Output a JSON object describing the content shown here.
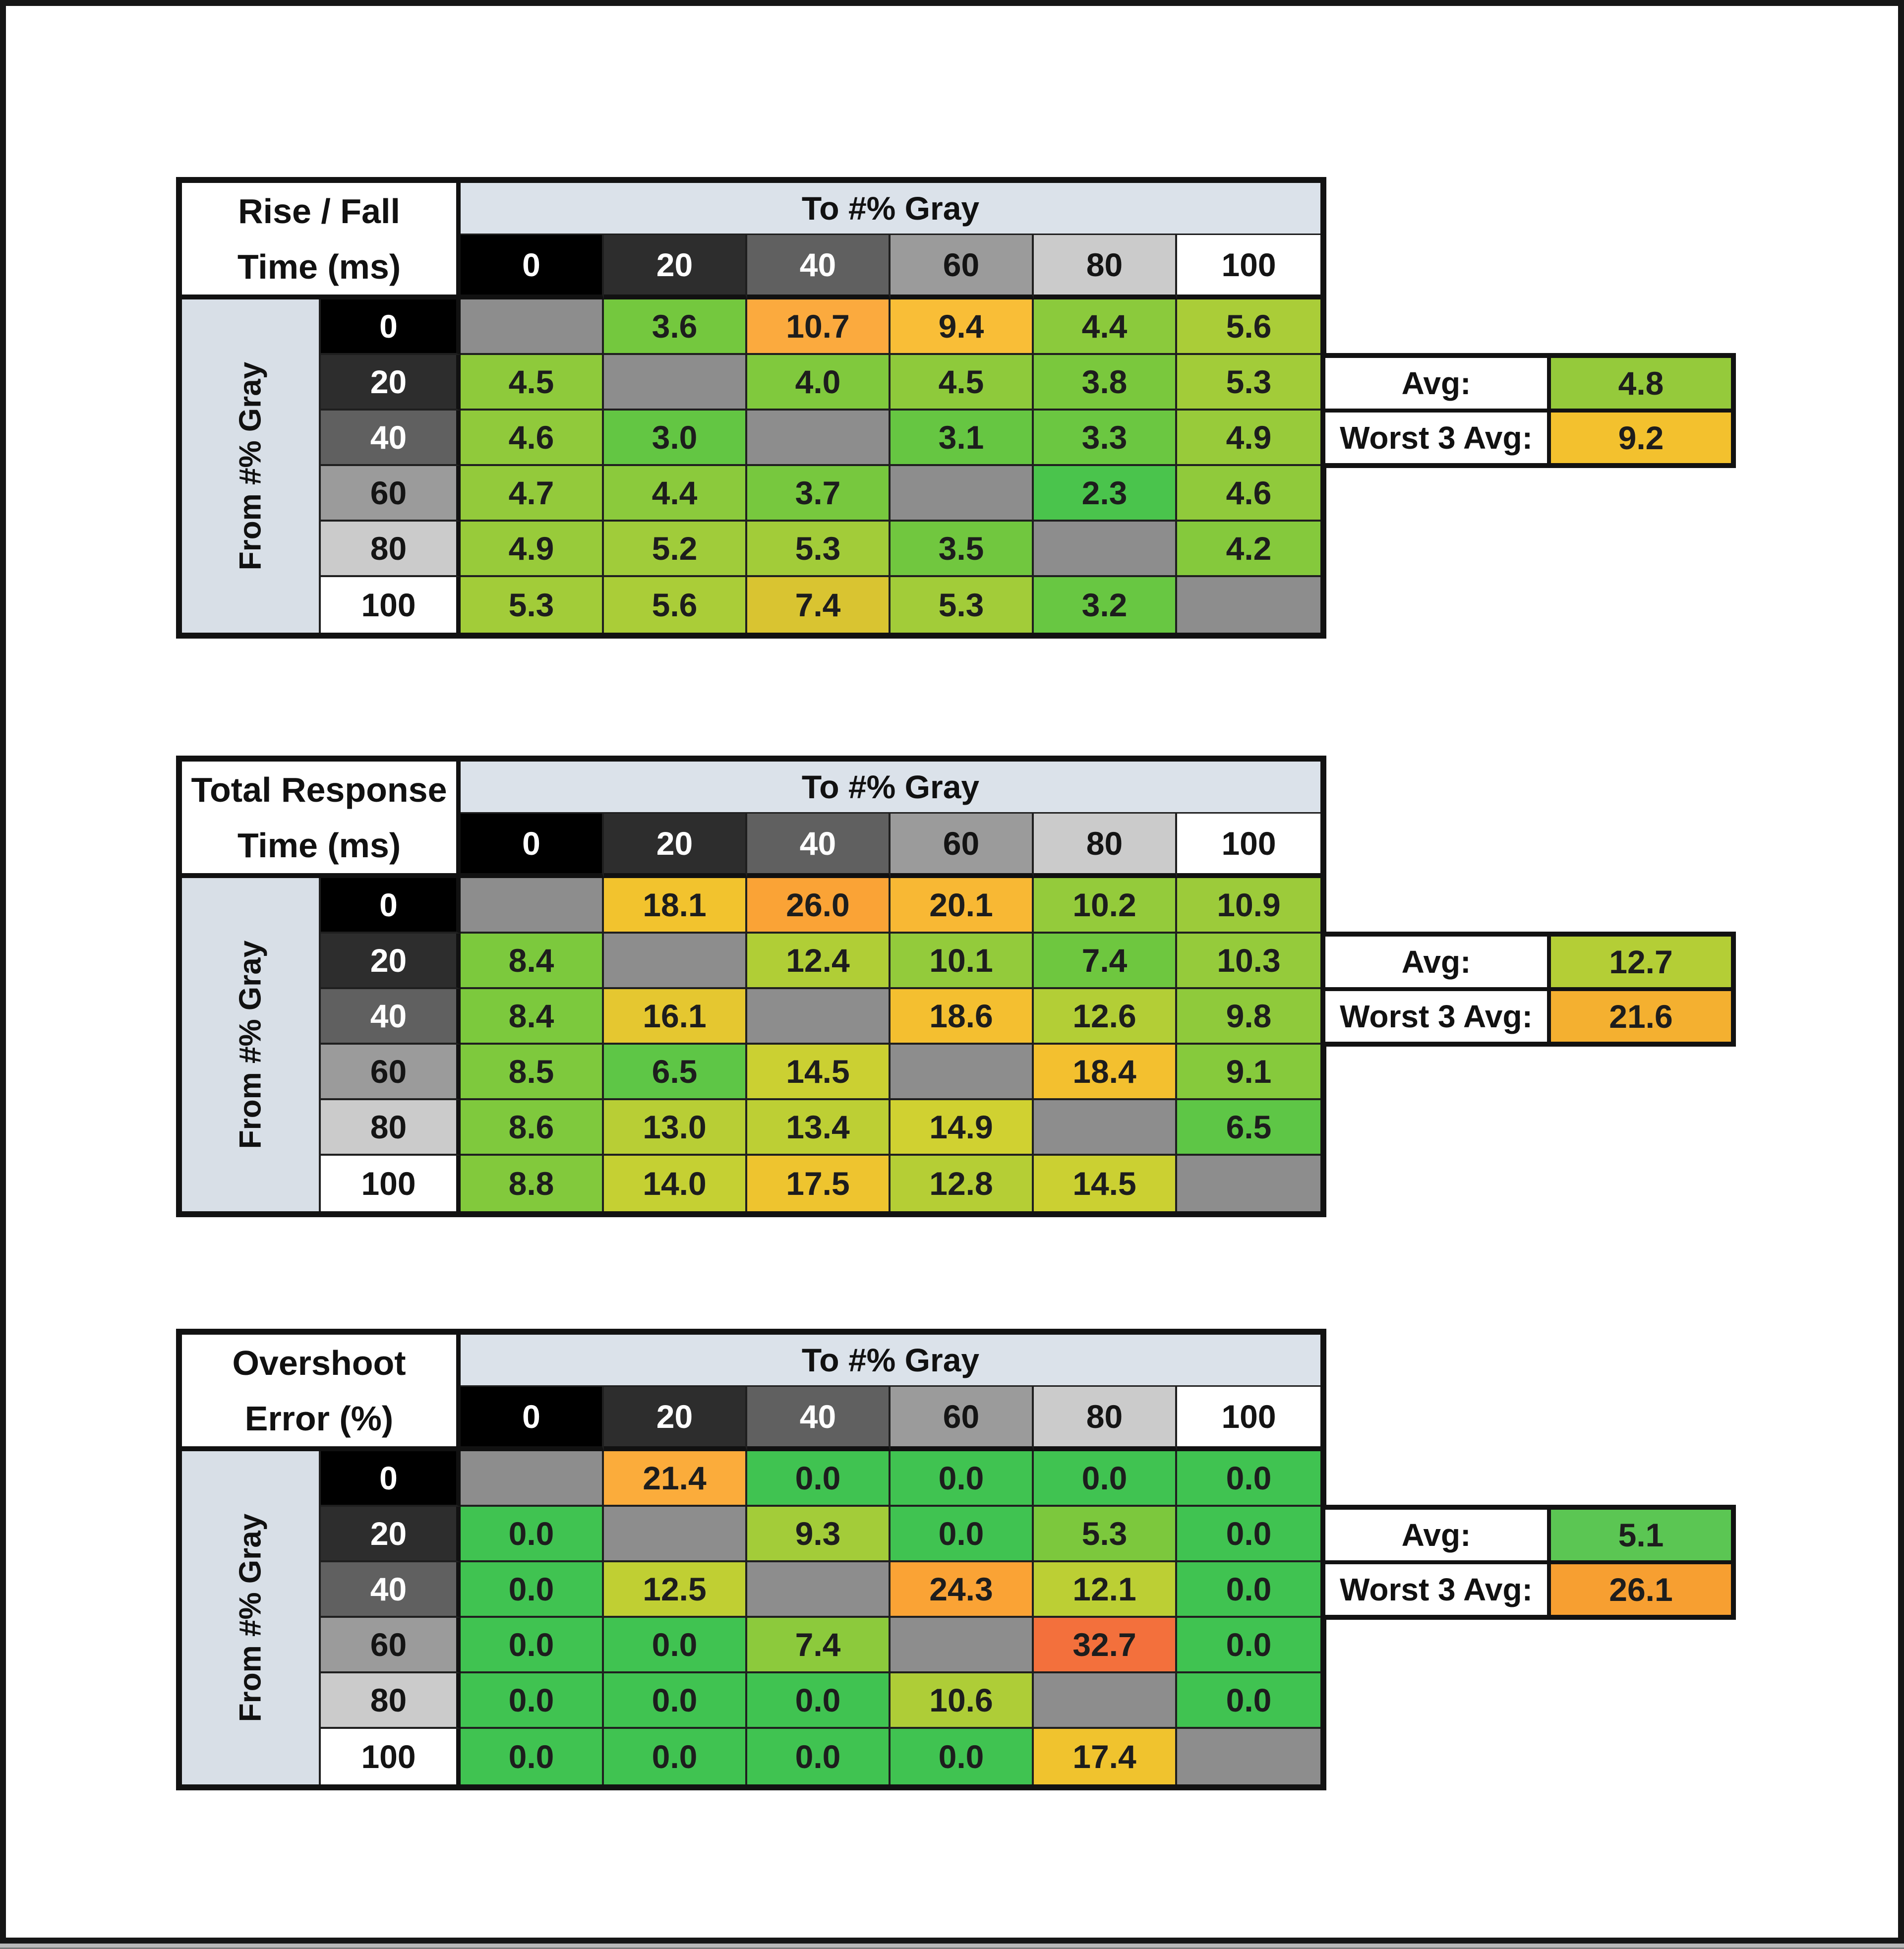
{
  "frame": {
    "background": "#ffffff",
    "border_color": "#161616",
    "bottom_strip_color": "#b9b9b9"
  },
  "shared": {
    "to_axis_label": "To #% Gray",
    "from_axis_label": "From #% Gray",
    "gray_levels": [
      "0",
      "20",
      "40",
      "60",
      "80",
      "100"
    ],
    "header_shades": [
      {
        "bg": "#000000",
        "fg": "#ffffff"
      },
      {
        "bg": "#2d2d2d",
        "fg": "#ffffff"
      },
      {
        "bg": "#606060",
        "fg": "#ffffff"
      },
      {
        "bg": "#9b9b9b",
        "fg": "#141414"
      },
      {
        "bg": "#cbcbcb",
        "fg": "#141414"
      },
      {
        "bg": "#ffffff",
        "fg": "#141414"
      }
    ],
    "diagonal_color": "#8d8d8d",
    "band_bg": "#dbe2ea",
    "rot_col_bg": "#d8dfe7",
    "avg_label": "Avg:",
    "worst_label": "Worst 3 Avg:"
  },
  "chart_data": [
    {
      "id": "rise-fall-time",
      "type": "heatmap",
      "title": "Rise / Fall Time (ms)",
      "title_lines": [
        "Rise / Fall",
        "Time (ms)"
      ],
      "x_axis_label": "To #% Gray",
      "y_axis_label": "From #% Gray",
      "x_ticks": [
        "0",
        "20",
        "40",
        "60",
        "80",
        "100"
      ],
      "y_ticks": [
        "0",
        "20",
        "40",
        "60",
        "80",
        "100"
      ],
      "values": [
        [
          null,
          3.6,
          10.7,
          9.4,
          4.4,
          5.6
        ],
        [
          4.5,
          null,
          4.0,
          4.5,
          3.8,
          5.3
        ],
        [
          4.6,
          3.0,
          null,
          3.1,
          3.3,
          4.9
        ],
        [
          4.7,
          4.4,
          3.7,
          null,
          2.3,
          4.6
        ],
        [
          4.9,
          5.2,
          5.3,
          3.5,
          null,
          4.2
        ],
        [
          5.3,
          5.6,
          7.4,
          5.3,
          3.2,
          null
        ]
      ],
      "cell_colors": [
        [
          null,
          "#74c83e",
          "#fbaa3e",
          "#f9be37",
          "#8bca3c",
          "#aacd38"
        ],
        [
          "#8eca3b",
          null,
          "#80c93d",
          "#8eca3b",
          "#7ac83d",
          "#a2cc39"
        ],
        [
          "#90ca3b",
          "#63c643",
          null,
          "#66c642",
          "#6bc741",
          "#98cb3a"
        ],
        [
          "#93ca3b",
          "#8bca3c",
          "#77c83e",
          null,
          "#4ac44c",
          "#90ca3b"
        ],
        [
          "#98cb3a",
          "#a0cc3a",
          "#a2cc39",
          "#71c73f",
          null,
          "#85c93c"
        ],
        [
          "#a2cc39",
          "#aacd38",
          "#d9c431",
          "#a2cc39",
          "#68c742",
          null
        ]
      ],
      "summary": {
        "avg_value": "4.8",
        "avg_color": "#95ca3b",
        "worst3_value": "9.2",
        "worst3_color": "#f3c12e"
      }
    },
    {
      "id": "total-response-time",
      "type": "heatmap",
      "title": "Total Response Time (ms)",
      "title_lines": [
        "Total Response",
        "Time (ms)"
      ],
      "x_axis_label": "To #% Gray",
      "y_axis_label": "From #% Gray",
      "x_ticks": [
        "0",
        "20",
        "40",
        "60",
        "80",
        "100"
      ],
      "y_ticks": [
        "0",
        "20",
        "40",
        "60",
        "80",
        "100"
      ],
      "values": [
        [
          null,
          18.1,
          26.0,
          20.1,
          10.2,
          10.9
        ],
        [
          8.4,
          null,
          12.4,
          10.1,
          7.4,
          10.3
        ],
        [
          8.4,
          16.1,
          null,
          18.6,
          12.6,
          9.8
        ],
        [
          8.5,
          6.5,
          14.5,
          null,
          18.4,
          9.1
        ],
        [
          8.6,
          13.0,
          13.4,
          14.9,
          null,
          6.5
        ],
        [
          8.8,
          14.0,
          17.5,
          12.8,
          14.5,
          null
        ]
      ],
      "cell_colors": [
        [
          null,
          "#f2c32e",
          "#faa336",
          "#f8b834",
          "#94cb3b",
          "#9ccb3a"
        ],
        [
          "#7cc93d",
          null,
          "#b0ce36",
          "#93cb3b",
          "#6ec73f",
          "#95cb3b"
        ],
        [
          "#7cc93d",
          "#e5c730",
          null,
          "#f4bf30",
          "#b3ce36",
          "#8fca3b"
        ],
        [
          "#7ec93d",
          "#5ec646",
          "#cbd032",
          null,
          "#f3c02f",
          "#86ca3c"
        ],
        [
          "#7fc93d",
          "#b8ce35",
          "#bdcf34",
          "#d0d131",
          null,
          "#5ec646"
        ],
        [
          "#82c93c",
          "#c5d033",
          "#eec42f",
          "#b5ce35",
          "#cbd032",
          null
        ]
      ],
      "summary": {
        "avg_value": "12.7",
        "avg_color": "#b4ce36",
        "worst3_value": "21.6",
        "worst3_color": "#f4b030"
      }
    },
    {
      "id": "overshoot-error",
      "type": "heatmap",
      "title": "Overshoot Error (%)",
      "title_lines": [
        "Overshoot",
        "Error (%)"
      ],
      "x_axis_label": "To #% Gray",
      "y_axis_label": "From #% Gray",
      "x_ticks": [
        "0",
        "20",
        "40",
        "60",
        "80",
        "100"
      ],
      "y_ticks": [
        "0",
        "20",
        "40",
        "60",
        "80",
        "100"
      ],
      "values": [
        [
          null,
          21.4,
          0.0,
          0.0,
          0.0,
          0.0
        ],
        [
          0.0,
          null,
          9.3,
          0.0,
          5.3,
          0.0
        ],
        [
          0.0,
          12.5,
          null,
          24.3,
          12.1,
          0.0
        ],
        [
          0.0,
          0.0,
          7.4,
          null,
          32.7,
          0.0
        ],
        [
          0.0,
          0.0,
          0.0,
          10.6,
          null,
          0.0
        ],
        [
          0.0,
          0.0,
          0.0,
          0.0,
          17.4,
          null
        ]
      ],
      "cell_colors": [
        [
          null,
          "#fbac3b",
          "#40c351",
          "#40c351",
          "#40c351",
          "#40c351"
        ],
        [
          "#40c351",
          null,
          "#a3cc39",
          "#40c351",
          "#7cc83d",
          "#40c351"
        ],
        [
          "#40c351",
          "#c0cf33",
          null,
          "#faa335",
          "#bccf34",
          "#40c351"
        ],
        [
          "#40c351",
          "#40c351",
          "#8cca3c",
          null,
          "#f3703c",
          "#40c351"
        ],
        [
          "#40c351",
          "#40c351",
          "#40c351",
          "#aecd37",
          null,
          "#40c351"
        ],
        [
          "#40c351",
          "#40c351",
          "#40c351",
          "#40c351",
          "#f0c32e",
          null
        ]
      ],
      "summary": {
        "avg_value": "5.1",
        "avg_color": "#5bc653",
        "worst3_value": "26.1",
        "worst3_color": "#f79f31"
      }
    }
  ]
}
